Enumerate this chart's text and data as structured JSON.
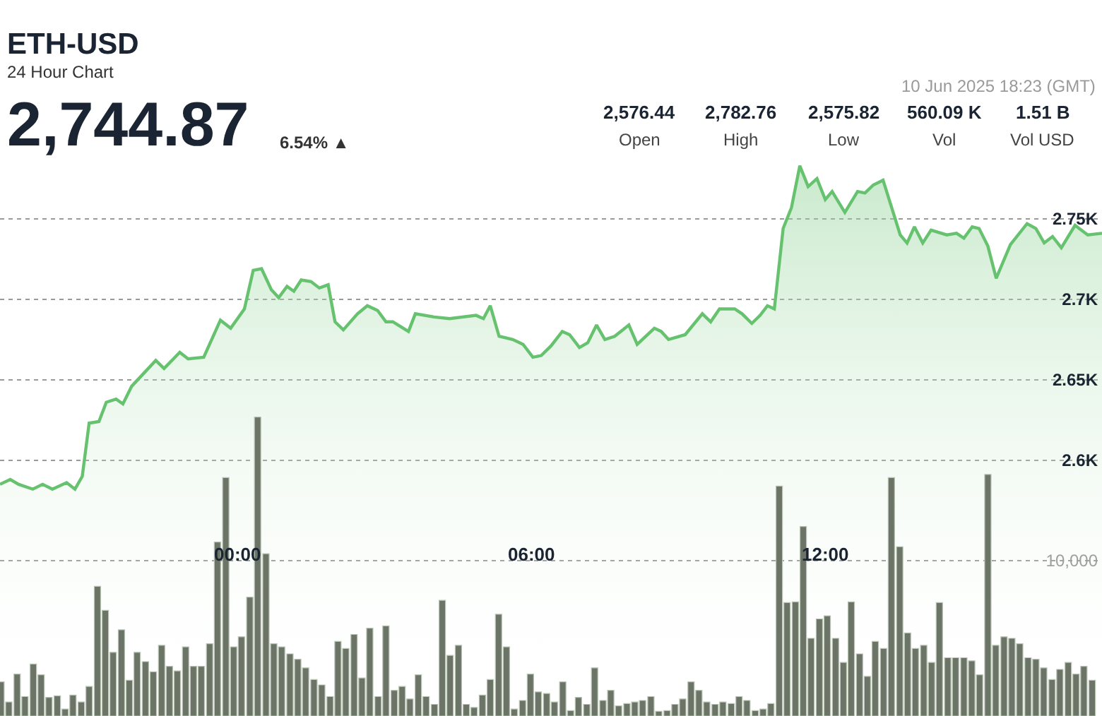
{
  "chart_data": {
    "type": "area",
    "title": "ETH-USD",
    "subtitle": "24 Hour Chart",
    "annotations": [
      "2,744.87",
      "6.54% ▲",
      "10 Jun 2025 18:23 (GMT)",
      "2,576.44",
      "Open",
      "2,782.76",
      "High",
      "2,575.82",
      "Low",
      "560.09 K",
      "Vol",
      "1.51 B",
      "Vol USD"
    ],
    "series": [
      {
        "color": "#66c26f",
        "x": [
          -4.85,
          -4.64,
          -4.47,
          -4.18,
          -3.98,
          -3.78,
          -3.49,
          -3.32,
          -3.17,
          -3.03,
          -2.83,
          -2.68,
          -2.48,
          -2.34,
          -2.16,
          -1.67,
          -1.5,
          -1.18,
          -1.01,
          -0.69,
          -0.35,
          -0.14,
          0.14,
          0.32,
          0.49,
          0.69,
          0.84,
          1.01,
          1.15,
          1.3,
          1.5,
          1.67,
          1.85,
          1.99,
          2.16,
          2.45,
          2.65,
          2.86,
          3.03,
          3.17,
          3.49,
          3.63,
          4.01,
          4.33,
          4.87,
          5.02,
          5.16,
          5.34,
          5.62,
          5.83,
          6.03,
          6.2,
          6.4,
          6.63,
          6.78,
          6.98,
          7.15,
          7.33,
          7.5,
          7.7,
          7.99,
          8.16,
          8.51,
          8.65,
          8.8,
          9.14,
          9.49,
          9.66,
          9.84,
          10.15,
          10.3,
          10.5,
          10.67,
          10.82,
          10.96,
          11.14,
          11.31,
          11.48,
          11.65,
          11.83,
          12.0,
          12.14,
          12.4,
          12.66,
          12.81,
          12.98,
          13.18,
          13.53,
          13.67,
          13.82,
          13.99,
          14.16,
          14.48,
          14.68,
          14.83,
          15.0,
          15.14,
          15.32,
          15.49,
          15.78,
          16.12,
          16.3,
          16.47,
          16.64,
          16.82,
          17.1,
          17.36,
          17.65
        ],
        "values": [
          2585,
          2588,
          2585,
          2582,
          2585,
          2582,
          2586,
          2582,
          2590,
          2623,
          2624,
          2636,
          2638,
          2635,
          2646,
          2662,
          2657,
          2667,
          2663,
          2664,
          2687,
          2682,
          2694,
          2718,
          2719,
          2706,
          2701,
          2708,
          2705,
          2712,
          2711,
          2707,
          2709,
          2686,
          2681,
          2691,
          2696,
          2693,
          2686,
          2686,
          2680,
          2691,
          2689,
          2688,
          2690,
          2688,
          2696,
          2677,
          2675,
          2672,
          2664,
          2665,
          2671,
          2680,
          2678,
          2670,
          2673,
          2684,
          2675,
          2677,
          2684,
          2672,
          2682,
          2680,
          2675,
          2678,
          2691,
          2686,
          2694,
          2694,
          2691,
          2685,
          2690,
          2696,
          2694,
          2744,
          2757,
          2783,
          2770,
          2775,
          2762,
          2767,
          2754,
          2767,
          2766,
          2771,
          2774,
          2740,
          2735,
          2745,
          2735,
          2743,
          2740,
          2741,
          2738,
          2745,
          2744,
          2733,
          2713,
          2734,
          2747,
          2744,
          2735,
          2739,
          2732,
          2746,
          2740,
          2741
        ]
      },
      {
        "type": "bar",
        "axis": "y2",
        "color": "#6b7466",
        "x": [
          -4.83,
          -4.67,
          -4.5,
          -4.34,
          -4.17,
          -4.01,
          -3.85,
          -3.68,
          -3.52,
          -3.36,
          -3.19,
          -3.03,
          -2.86,
          -2.7,
          -2.54,
          -2.37,
          -2.21,
          -2.05,
          -1.88,
          -1.72,
          -1.55,
          -1.39,
          -1.23,
          -1.06,
          -0.9,
          -0.74,
          -0.57,
          -0.41,
          -0.24,
          -0.08,
          0.08,
          0.25,
          0.41,
          0.58,
          0.74,
          0.9,
          1.07,
          1.23,
          1.39,
          1.56,
          1.72,
          1.89,
          2.05,
          2.21,
          2.38,
          2.54,
          2.7,
          2.87,
          3.03,
          3.2,
          3.36,
          3.52,
          3.69,
          3.85,
          4.02,
          4.18,
          4.34,
          4.51,
          4.67,
          4.83,
          5.0,
          5.16,
          5.33,
          5.49,
          5.65,
          5.82,
          5.98,
          6.14,
          6.31,
          6.47,
          6.64,
          6.8,
          6.96,
          7.13,
          7.29,
          7.46,
          7.62,
          7.78,
          7.95,
          8.11,
          8.27,
          8.44,
          8.6,
          8.77,
          8.93,
          9.09,
          9.26,
          9.42,
          9.58,
          9.75,
          9.91,
          10.08,
          10.24,
          10.4,
          10.57,
          10.73,
          10.89,
          11.06,
          11.22,
          11.39,
          11.55,
          11.71,
          11.88,
          12.04,
          12.21,
          12.37,
          12.53,
          12.7,
          12.86,
          13.02,
          13.19,
          13.35,
          13.52,
          13.68,
          13.84,
          14.01,
          14.17,
          14.33,
          14.5,
          14.66,
          14.83,
          14.99,
          15.15,
          15.32,
          15.48,
          15.65,
          15.81,
          15.97,
          16.14,
          16.3,
          16.46,
          16.63,
          16.79,
          16.96,
          17.12,
          17.28,
          17.45
        ],
        "values": [
          2200,
          900,
          2700,
          1250,
          3350,
          2650,
          1200,
          1300,
          450,
          1350,
          900,
          1900,
          8350,
          6800,
          4100,
          5550,
          2300,
          4100,
          3500,
          2850,
          4550,
          3200,
          2900,
          4450,
          3200,
          3200,
          4650,
          11200,
          15350,
          4450,
          5100,
          7650,
          19250,
          10450,
          4650,
          4450,
          4000,
          3650,
          3100,
          2350,
          2000,
          1250,
          4800,
          4350,
          5250,
          2450,
          5650,
          1250,
          5800,
          1650,
          1900,
          1100,
          2650,
          1250,
          750,
          7450,
          3900,
          4550,
          750,
          550,
          1350,
          2350,
          6550,
          4450,
          450,
          1000,
          2700,
          1550,
          1450,
          900,
          2200,
          350,
          1200,
          750,
          3100,
          1000,
          1650,
          650,
          800,
          900,
          1000,
          1250,
          300,
          350,
          750,
          1100,
          2200,
          1650,
          900,
          750,
          900,
          800,
          1250,
          1000,
          350,
          450,
          800,
          14800,
          7300,
          7350,
          12200,
          5000,
          6250,
          6450,
          5000,
          3450,
          7350,
          4000,
          2550,
          4800,
          4350,
          15350,
          10900,
          5350,
          4350,
          4550,
          3450,
          7300,
          3750,
          3750,
          3750,
          3550,
          2650,
          15550,
          4550,
          5100,
          5000,
          4650,
          3750,
          3650,
          3100,
          2350,
          3000,
          3450,
          2700,
          3200,
          2300
        ]
      }
    ],
    "xlim": [
      -4.85,
      17.65
    ],
    "xticks": [
      {
        "value": 0,
        "label": "00:00"
      },
      {
        "value": 6,
        "label": "06:00"
      },
      {
        "value": 12,
        "label": "12:00"
      }
    ],
    "ylim": [
      2441,
      2886
    ],
    "yticks": [
      {
        "value": 2600,
        "label": "2.6K"
      },
      {
        "value": 2650,
        "label": "2.65K"
      },
      {
        "value": 2700,
        "label": "2.7K"
      },
      {
        "value": 2750,
        "label": "2.75K"
      }
    ],
    "y2lim": [
      0,
      46100
    ],
    "y2ticks": [
      {
        "value": 10000,
        "label": "10,000"
      }
    ],
    "grid": true
  }
}
